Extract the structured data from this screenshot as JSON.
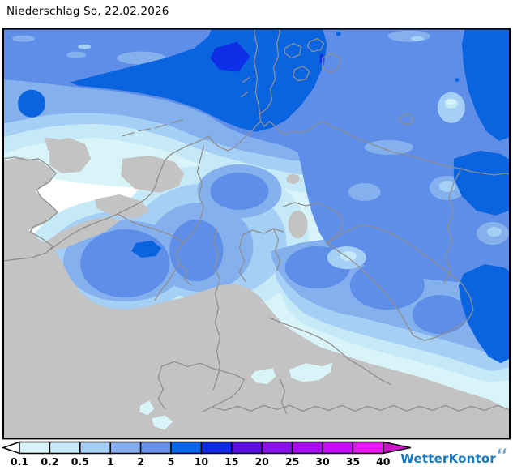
{
  "title": "Niederschlag So, 22.02.2026",
  "legend": {
    "boundary_labels": [
      "0.1",
      "0.2",
      "0.5",
      "1",
      "2",
      "5",
      "10",
      "15",
      "20",
      "25",
      "30",
      "35",
      "40"
    ],
    "below_min_color": "#ffffff",
    "cell_colors": [
      "#d9f4f9",
      "#c5e9f7",
      "#a5cff4",
      "#83adf0",
      "#6990ea",
      "#0966f0",
      "#0f2be8",
      "#5c10e6",
      "#8a10ee",
      "#aa0cf4",
      "#cb0cf8",
      "#e816f8"
    ],
    "above_max_color": "#cc14c8",
    "outline_color": "#000000"
  },
  "map": {
    "kind": "precipitation-contour-map",
    "region": "Germany and Central Europe",
    "colors": {
      "sea": "#ffffff",
      "dry_land": "#c3c3c3",
      "border": "#8f8f8f",
      "frame": "#000000",
      "p_0_1": "#d9f4f8",
      "p_0_2": "#c6e9f7",
      "p_0_5": "#a5cff4",
      "p_1": "#84b0ee",
      "p_2": "#5f8ee8",
      "p_5": "#0a64e0",
      "p_10": "#0e2ee8"
    }
  },
  "branding": {
    "name": "WetterKontor",
    "color": "#1878be",
    "icon_color": "#6f9cc0"
  }
}
